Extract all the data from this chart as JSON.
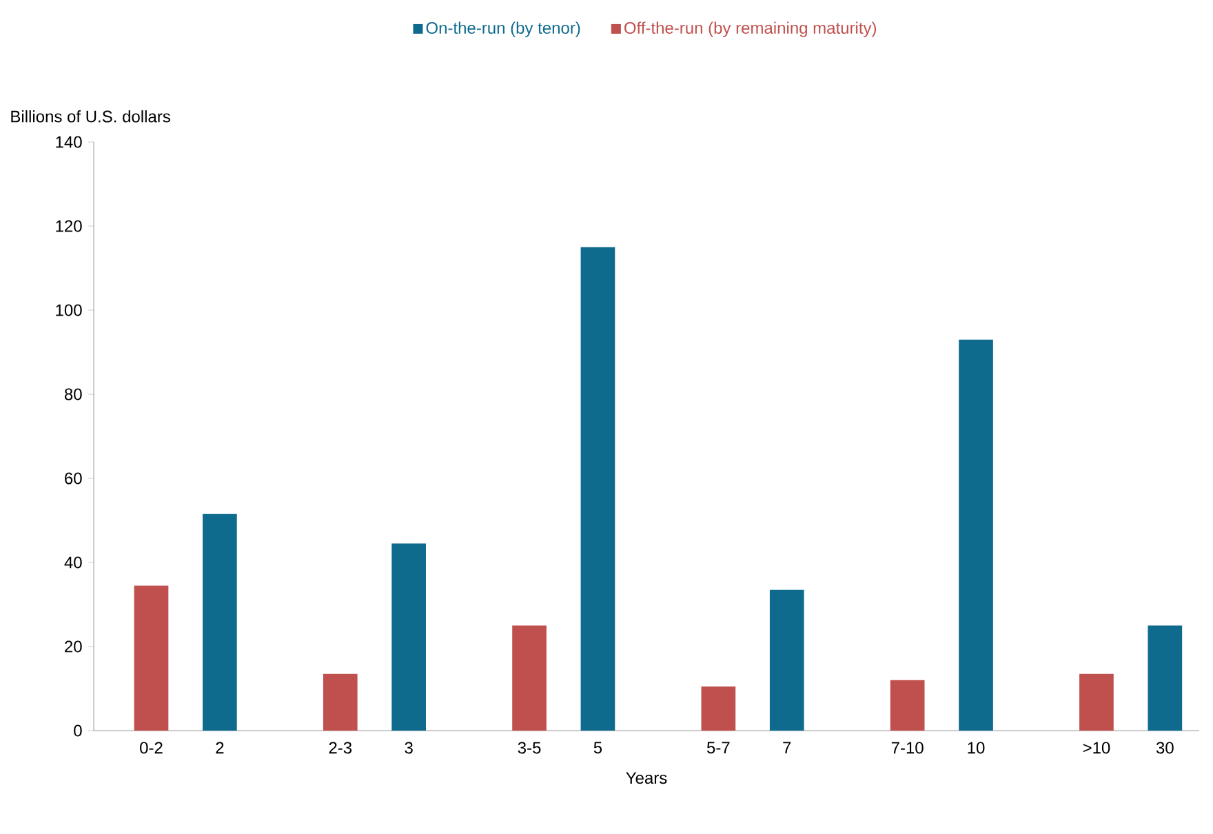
{
  "chart_data": {
    "type": "bar",
    "ylabel": "Billions of U.S. dollars",
    "xlabel": "Years",
    "categories": [
      "0-2",
      "2",
      "2-3",
      "3",
      "3-5",
      "5",
      "5-7",
      "7",
      "7-10",
      "10",
      ">10",
      "30"
    ],
    "series": [
      {
        "name": "On-the-run (by tenor)",
        "color": "#0f6b8e",
        "values": [
          null,
          51.5,
          null,
          44.5,
          null,
          115,
          null,
          33.5,
          null,
          93,
          null,
          25
        ]
      },
      {
        "name": "Off-the-run (by remaining maturity)",
        "color": "#c0504d",
        "values": [
          34.5,
          null,
          13.5,
          null,
          25,
          null,
          10.5,
          null,
          12,
          null,
          13.5,
          null
        ]
      }
    ],
    "ylim": [
      0,
      140
    ],
    "yticks": [
      0,
      20,
      40,
      60,
      80,
      100,
      120,
      140
    ],
    "legend": "top",
    "grid": false
  }
}
